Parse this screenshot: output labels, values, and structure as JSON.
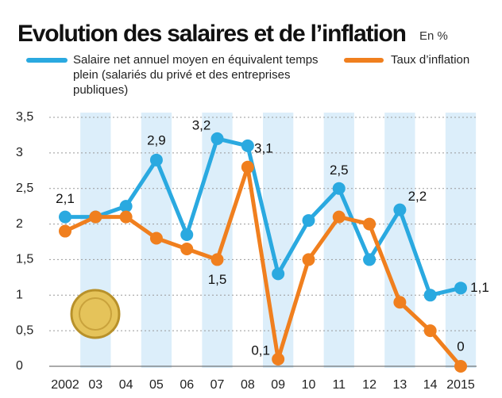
{
  "chart_data": {
    "type": "line",
    "title": "Evolution des salaires et de l’inflation",
    "subtitle": "En %",
    "categories": [
      "2002",
      "03",
      "04",
      "05",
      "06",
      "07",
      "08",
      "09",
      "10",
      "11",
      "12",
      "13",
      "14",
      "2015"
    ],
    "series": [
      {
        "name": "Salaire net annuel moyen en équivalent temps plein (salariés du privé et des entreprises publiques)",
        "color": "#2aa9e0",
        "values": [
          2.1,
          2.1,
          2.25,
          2.9,
          1.85,
          3.2,
          3.1,
          1.3,
          2.05,
          2.5,
          1.5,
          2.2,
          1.0,
          1.1
        ],
        "value_labels": [
          "2,1",
          null,
          null,
          "2,9",
          null,
          "3,2",
          "3,1",
          null,
          null,
          "2,5",
          null,
          "2,2",
          null,
          "1,1"
        ]
      },
      {
        "name": "Taux d’inflation",
        "color": "#f07f1e",
        "values": [
          1.9,
          2.1,
          2.1,
          1.8,
          1.65,
          1.5,
          2.8,
          0.1,
          1.5,
          2.1,
          2.0,
          0.9,
          0.5,
          0
        ],
        "value_labels": [
          null,
          null,
          null,
          null,
          null,
          "1,5",
          null,
          "0,1",
          null,
          null,
          null,
          null,
          null,
          "0"
        ]
      }
    ],
    "ylim": [
      0,
      3.5
    ],
    "yticks": [
      0,
      {
        "value": 0.5,
        "label": "0,5"
      },
      1,
      {
        "value": 1.5,
        "label": "1,5"
      },
      2,
      {
        "value": 2.5,
        "label": "2,5"
      },
      3,
      {
        "value": 3.5,
        "label": "3,5"
      }
    ],
    "grid": true
  }
}
